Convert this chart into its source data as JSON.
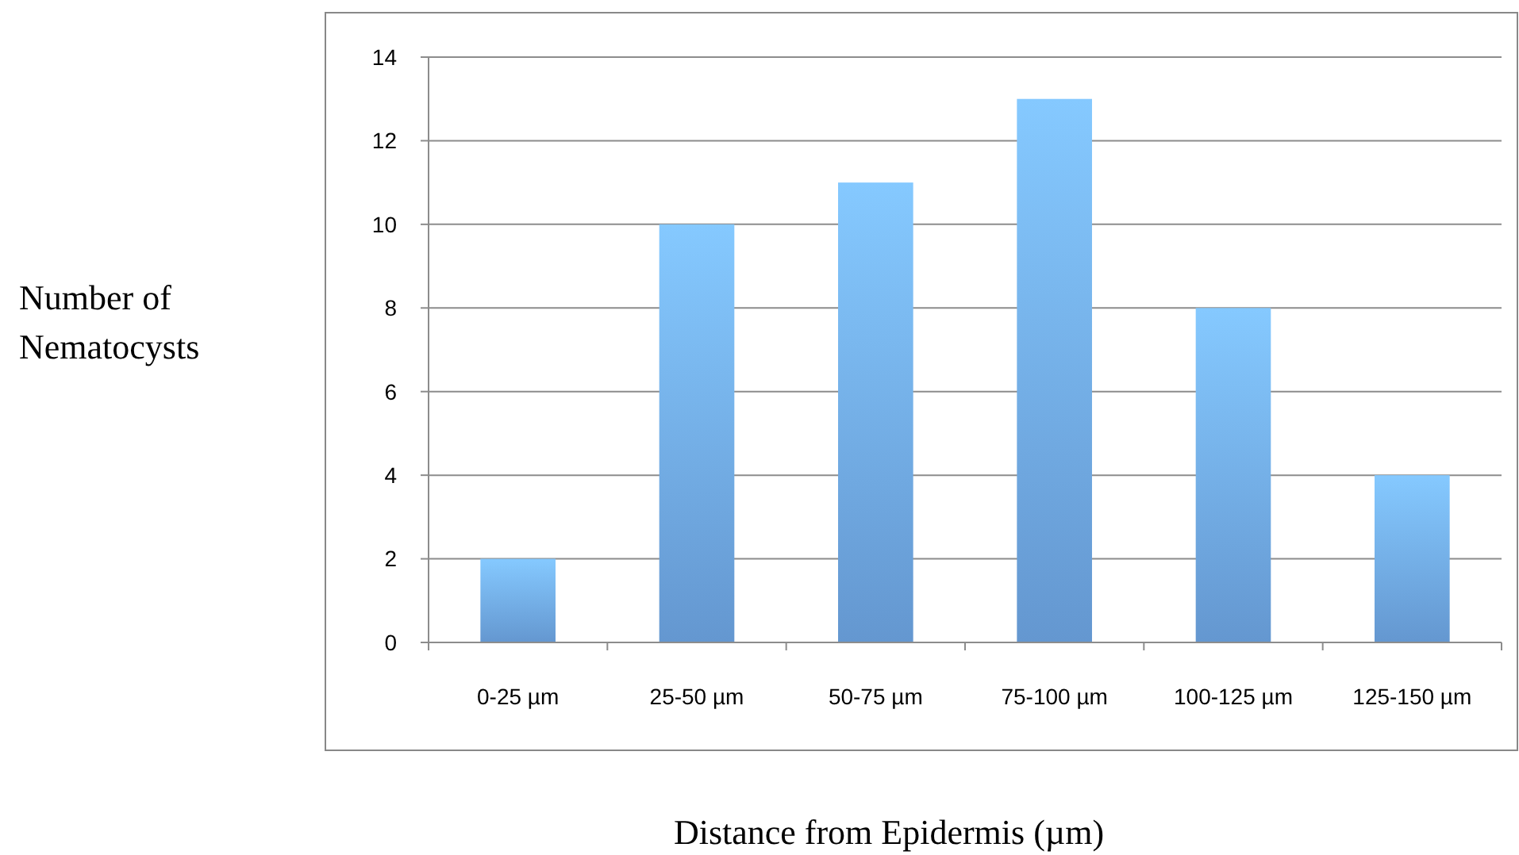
{
  "chart_data": {
    "type": "bar",
    "xlabel": "Distance from Epidermis (µm)",
    "ylabel": "Number of\nNematocysts",
    "categories": [
      "0-25 µm",
      "25-50 µm",
      "50-75 µm",
      "75-100 µm",
      "100-125 µm",
      "125-150 µm"
    ],
    "values": [
      2,
      10,
      11,
      13,
      8,
      4
    ],
    "color": "#6fa8e8",
    "ylim": [
      0,
      14
    ],
    "yticks": [
      0,
      2,
      4,
      6,
      8,
      10,
      12,
      14
    ],
    "grid": "y"
  }
}
